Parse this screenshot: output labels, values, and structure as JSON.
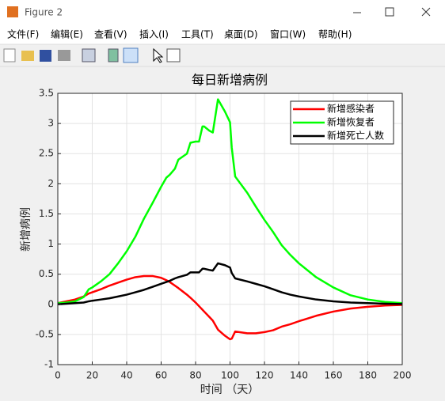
{
  "window": {
    "title": "Figure 2",
    "menu": [
      "文件(F)",
      "编辑(E)",
      "查看(V)",
      "插入(I)",
      "工具(T)",
      "桌面(D)",
      "窗口(W)",
      "帮助(H)"
    ]
  },
  "chart_data": {
    "type": "line",
    "title": "每日新增病例",
    "xlabel": "时间 （天）",
    "ylabel": "新增病例",
    "x": [
      0,
      5,
      10,
      15,
      18,
      20,
      25,
      30,
      35,
      40,
      45,
      50,
      55,
      60,
      63,
      65,
      68,
      70,
      75,
      77,
      80,
      82,
      84,
      85,
      88,
      90,
      93,
      97,
      100,
      101,
      103,
      110,
      115,
      120,
      125,
      130,
      135,
      140,
      150,
      160,
      170,
      180,
      190,
      200
    ],
    "series": [
      {
        "name": "新增感染者",
        "color": "#ff0000",
        "values": [
          0.02,
          0.05,
          0.08,
          0.13,
          0.18,
          0.2,
          0.25,
          0.31,
          0.36,
          0.41,
          0.45,
          0.47,
          0.47,
          0.44,
          0.4,
          0.37,
          0.31,
          0.27,
          0.16,
          0.11,
          0.03,
          -0.03,
          -0.09,
          -0.12,
          -0.21,
          -0.27,
          -0.42,
          -0.52,
          -0.58,
          -0.57,
          -0.45,
          -0.48,
          -0.48,
          -0.46,
          -0.43,
          -0.37,
          -0.33,
          -0.28,
          -0.19,
          -0.12,
          -0.07,
          -0.04,
          -0.02,
          -0.01
        ]
      },
      {
        "name": "新增恢复者",
        "color": "#00ff00",
        "values": [
          0.02,
          0.03,
          0.05,
          0.12,
          0.25,
          0.28,
          0.38,
          0.5,
          0.68,
          0.88,
          1.12,
          1.42,
          1.68,
          1.95,
          2.1,
          2.15,
          2.25,
          2.4,
          2.5,
          2.68,
          2.7,
          2.7,
          2.95,
          2.95,
          2.88,
          2.85,
          3.4,
          3.2,
          3.02,
          2.6,
          2.12,
          1.85,
          1.62,
          1.4,
          1.2,
          0.98,
          0.82,
          0.68,
          0.45,
          0.28,
          0.15,
          0.08,
          0.04,
          0.02
        ]
      },
      {
        "name": "新增死亡人数",
        "color": "#000000",
        "values": [
          0,
          0.01,
          0.02,
          0.03,
          0.05,
          0.06,
          0.08,
          0.1,
          0.13,
          0.16,
          0.2,
          0.24,
          0.29,
          0.34,
          0.37,
          0.39,
          0.43,
          0.45,
          0.49,
          0.53,
          0.53,
          0.53,
          0.59,
          0.59,
          0.57,
          0.56,
          0.68,
          0.65,
          0.61,
          0.52,
          0.43,
          0.38,
          0.34,
          0.3,
          0.25,
          0.2,
          0.16,
          0.13,
          0.08,
          0.05,
          0.03,
          0.02,
          0.01,
          0.005
        ]
      }
    ],
    "xlim": [
      0,
      200
    ],
    "xticks": [
      0,
      20,
      40,
      60,
      80,
      100,
      120,
      140,
      160,
      180,
      200
    ],
    "ylim": [
      -1,
      3.5
    ],
    "yticks": [
      -1,
      -0.5,
      0,
      0.5,
      1,
      1.5,
      2,
      2.5,
      3,
      3.5
    ],
    "grid": true,
    "legend": "upper right"
  }
}
